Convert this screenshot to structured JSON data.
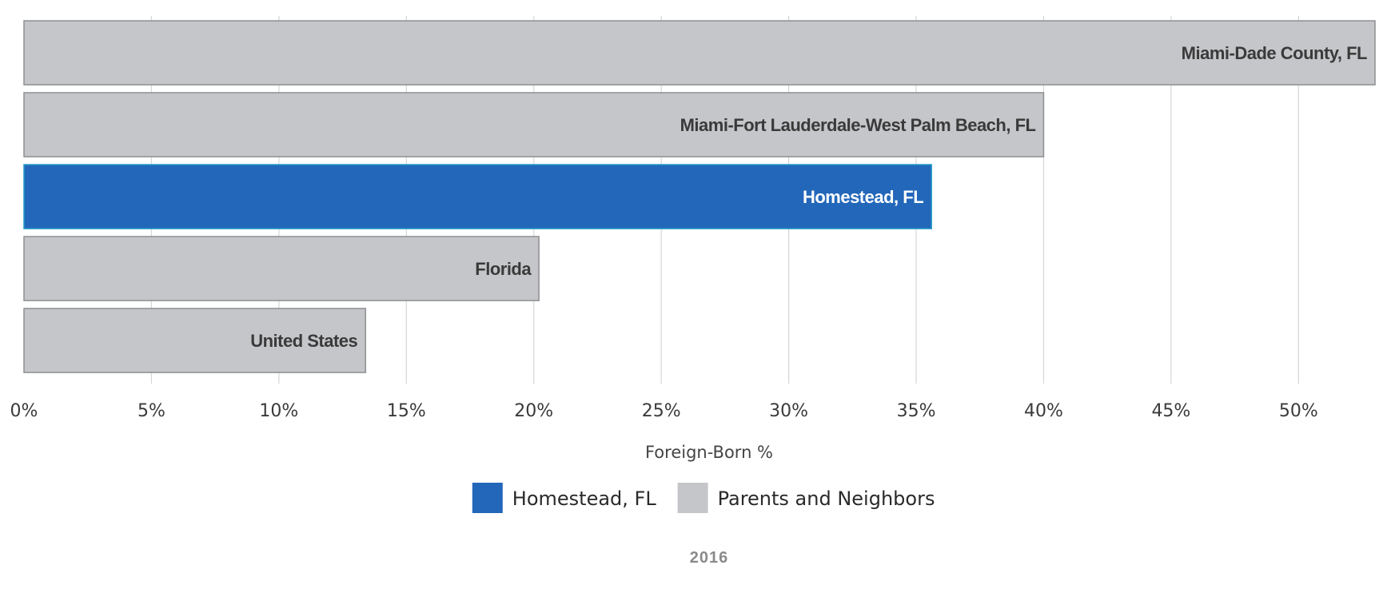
{
  "chart_data": {
    "type": "bar",
    "orientation": "horizontal",
    "categories": [
      "Miami-Dade County, FL",
      "Miami-Fort Lauderdale-West Palm Beach, FL",
      "Homestead, FL",
      "Florida",
      "United States"
    ],
    "values": [
      53.0,
      40.0,
      35.6,
      20.2,
      13.4
    ],
    "groups": [
      "Parents and Neighbors",
      "Parents and Neighbors",
      "Homestead, FL",
      "Parents and Neighbors",
      "Parents and Neighbors"
    ],
    "xlabel": "Foreign-Born %",
    "ylabel": "",
    "xlim": [
      0,
      53
    ],
    "xticks": [
      0,
      5,
      10,
      15,
      20,
      25,
      30,
      35,
      40,
      45,
      50
    ],
    "xtick_labels": [
      "0%",
      "5%",
      "10%",
      "15%",
      "20%",
      "25%",
      "30%",
      "35%",
      "40%",
      "45%",
      "50%"
    ],
    "grid": "vertical",
    "legend": {
      "placement": "bottom-center",
      "entries": [
        {
          "label": "Homestead, FL",
          "color": "#2367BA"
        },
        {
          "label": "Parents and Neighbors",
          "color": "#C5C6C9"
        }
      ]
    },
    "year_label": "2016"
  },
  "colors": {
    "highlight": "#2367BA",
    "highlight_border": "#1E9BC8",
    "neutral": "#C5C6C9",
    "neutral_border": "#8E8F91",
    "neutral_label": "#3A3A3A",
    "highlight_label": "#FFFFFF",
    "grid": "#D6D6D6"
  }
}
